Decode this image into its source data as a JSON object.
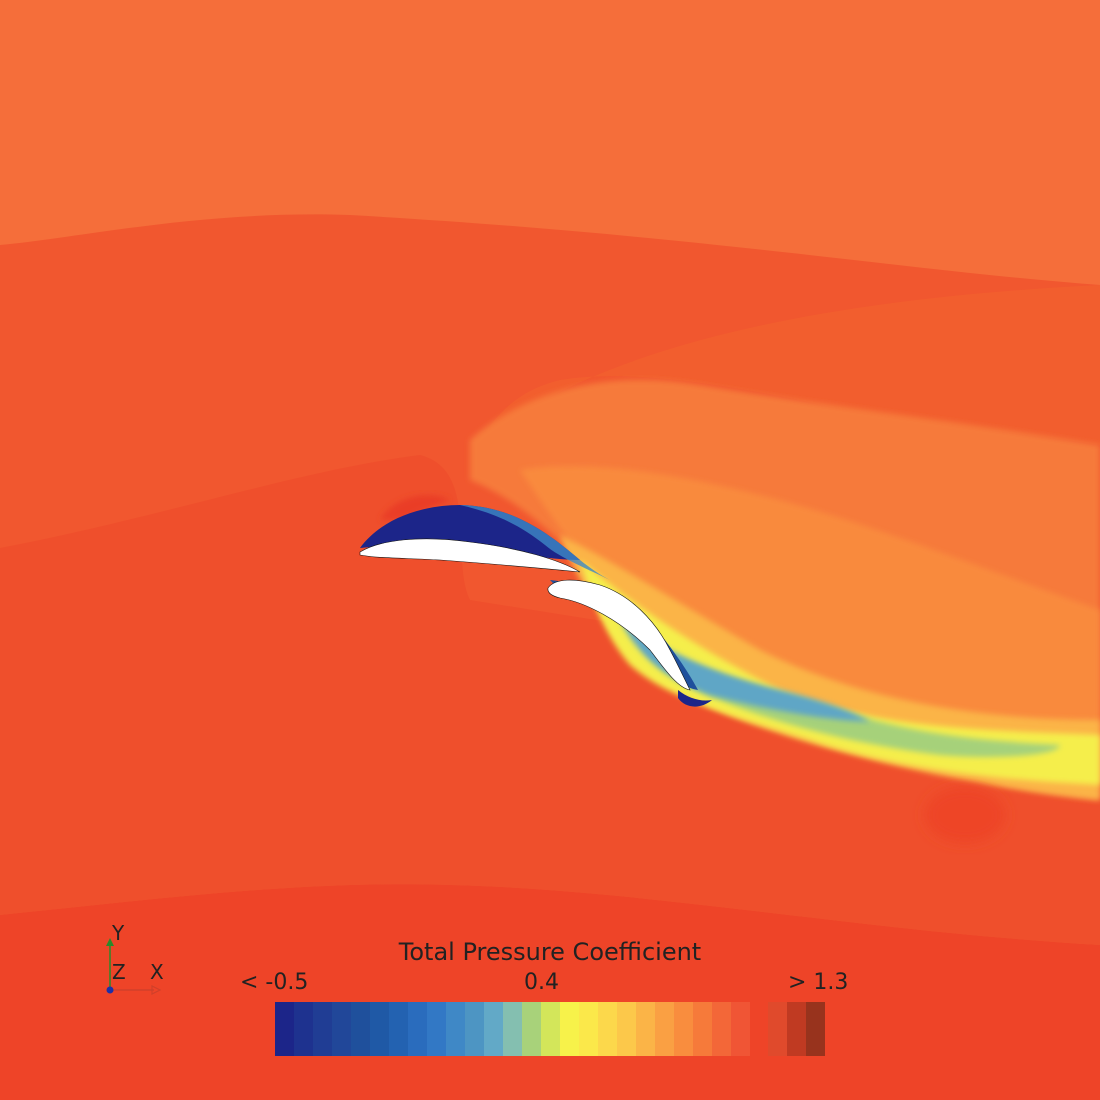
{
  "scalar_field": "Total Pressure Coefficient",
  "colorbar": {
    "title": "Total Pressure Coefficient",
    "min_label": "< -0.5",
    "mid_label": "0.4",
    "max_label": "> 1.3",
    "min_value": -0.5,
    "mid_value": 0.4,
    "max_value": 1.3,
    "colors": [
      "#1c2589",
      "#1e328f",
      "#203d94",
      "#214799",
      "#1f509c",
      "#1f59a6",
      "#2362b1",
      "#2a6cbd",
      "#3278c5",
      "#3f88c6",
      "#4d95c3",
      "#62a9c7",
      "#84bfb0",
      "#a8d27a",
      "#d3e65a",
      "#f7f24a",
      "#fbe84a",
      "#fcd84b",
      "#fcc84a",
      "#fbb447",
      "#faa043",
      "#f98d3e",
      "#f67a3a",
      "#f36738",
      "#f05535"
    ],
    "overflow_colors": [
      "#e04a2c",
      "#c03a22",
      "#98331d"
    ]
  },
  "axes_triad": {
    "y": "Y",
    "z": "Z",
    "x": "X"
  },
  "field_colors": {
    "freestream": "#f06b3a",
    "mid": "#f1572f",
    "low": "#ef4a2b",
    "wake_light": "#f98a3e",
    "wake_yellow": "#f5ee4c",
    "wake_green": "#a6d17a",
    "wake_blue": "#5ea6c6",
    "suction": "#1c2589",
    "body": "#ffffff"
  }
}
